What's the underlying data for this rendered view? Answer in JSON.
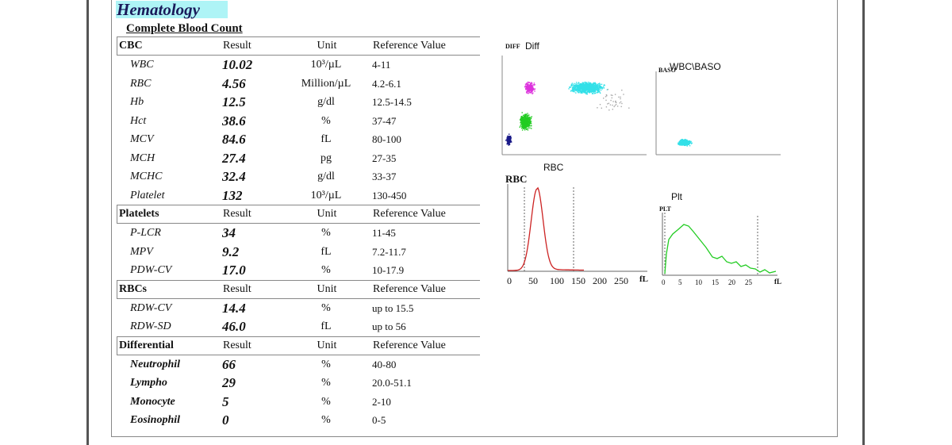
{
  "report": {
    "section_title": "Hematology",
    "subtitle": "Complete Blood Count",
    "groups": [
      {
        "name": "CBC",
        "headers": {
          "result": "Result",
          "unit": "Unit",
          "ref": "Reference Value"
        },
        "rows": [
          {
            "test": "WBC",
            "result": "10.02",
            "unit": "10³/µL",
            "ref": "4-11"
          },
          {
            "test": "RBC",
            "result": "4.56",
            "unit": "Million/µL",
            "ref": "4.2-6.1"
          },
          {
            "test": "Hb",
            "result": "12.5",
            "unit": "g/dl",
            "ref": "12.5-14.5"
          },
          {
            "test": "Hct",
            "result": "38.6",
            "unit": "%",
            "ref": "37-47"
          },
          {
            "test": "MCV",
            "result": "84.6",
            "unit": "fL",
            "ref": "80-100"
          },
          {
            "test": "MCH",
            "result": "27.4",
            "unit": "pg",
            "ref": "27-35"
          },
          {
            "test": "MCHC",
            "result": "32.4",
            "unit": "g/dl",
            "ref": "33-37"
          },
          {
            "test": "Platelet",
            "result": "132",
            "unit": "10³/µL",
            "ref": "130-450"
          }
        ]
      },
      {
        "name": "Platelets",
        "headers": {
          "result": "Result",
          "unit": "Unit",
          "ref": "Reference Value"
        },
        "rows": [
          {
            "test": "P-LCR",
            "result": "34",
            "unit": "%",
            "ref": "11-45"
          },
          {
            "test": "MPV",
            "result": "9.2",
            "unit": "fL",
            "ref": "7.2-11.7"
          },
          {
            "test": "PDW-CV",
            "result": "17.0",
            "unit": "%",
            "ref": "10-17.9"
          }
        ]
      },
      {
        "name": "RBCs",
        "headers": {
          "result": "Result",
          "unit": "Unit",
          "ref": "Reference Value"
        },
        "rows": [
          {
            "test": "RDW-CV",
            "result": "14.4",
            "unit": "%",
            "ref": "up to 15.5"
          },
          {
            "test": "RDW-SD",
            "result": "46.0",
            "unit": "fL",
            "ref": "up to 56"
          }
        ]
      },
      {
        "name": "Differential",
        "headers": {
          "result": "Result",
          "unit": "Unit",
          "ref": "Reference Value"
        },
        "bold_names": true,
        "rows": [
          {
            "test": "Neutrophil",
            "result": "66",
            "unit": "%",
            "ref": "40-80"
          },
          {
            "test": "Lympho",
            "result": "29",
            "unit": "%",
            "ref": "20.0-51.1"
          },
          {
            "test": "Monocyte",
            "result": "5",
            "unit": "%",
            "ref": "2-10"
          },
          {
            "test": "Eosinophil",
            "result": "0",
            "unit": "%",
            "ref": "0-5"
          }
        ]
      }
    ]
  },
  "plots": {
    "diff": {
      "tag": "DIFF",
      "title": "Diff"
    },
    "baso": {
      "tag": "BASO",
      "title": "WBC\\BASO"
    },
    "rbc": {
      "tag": "RBC",
      "title": "RBC",
      "ticks": [
        "0",
        "50",
        "100",
        "150",
        "200",
        "250"
      ],
      "unit": "fL"
    },
    "plt": {
      "tag": "PLT",
      "title": "Plt",
      "ticks": [
        "0",
        "5",
        "10",
        "15",
        "20",
        "25"
      ],
      "unit": "fL"
    }
  },
  "colors": {
    "title_highlight": "#aef4f6",
    "neutrophil_cluster": "#33e0e8",
    "lymph_cluster": "#22cc22",
    "mono_cluster": "#dd33dd",
    "debris_cluster": "#1a1a88",
    "rbc_curve": "#cc2222",
    "plt_curve": "#22cc22"
  }
}
